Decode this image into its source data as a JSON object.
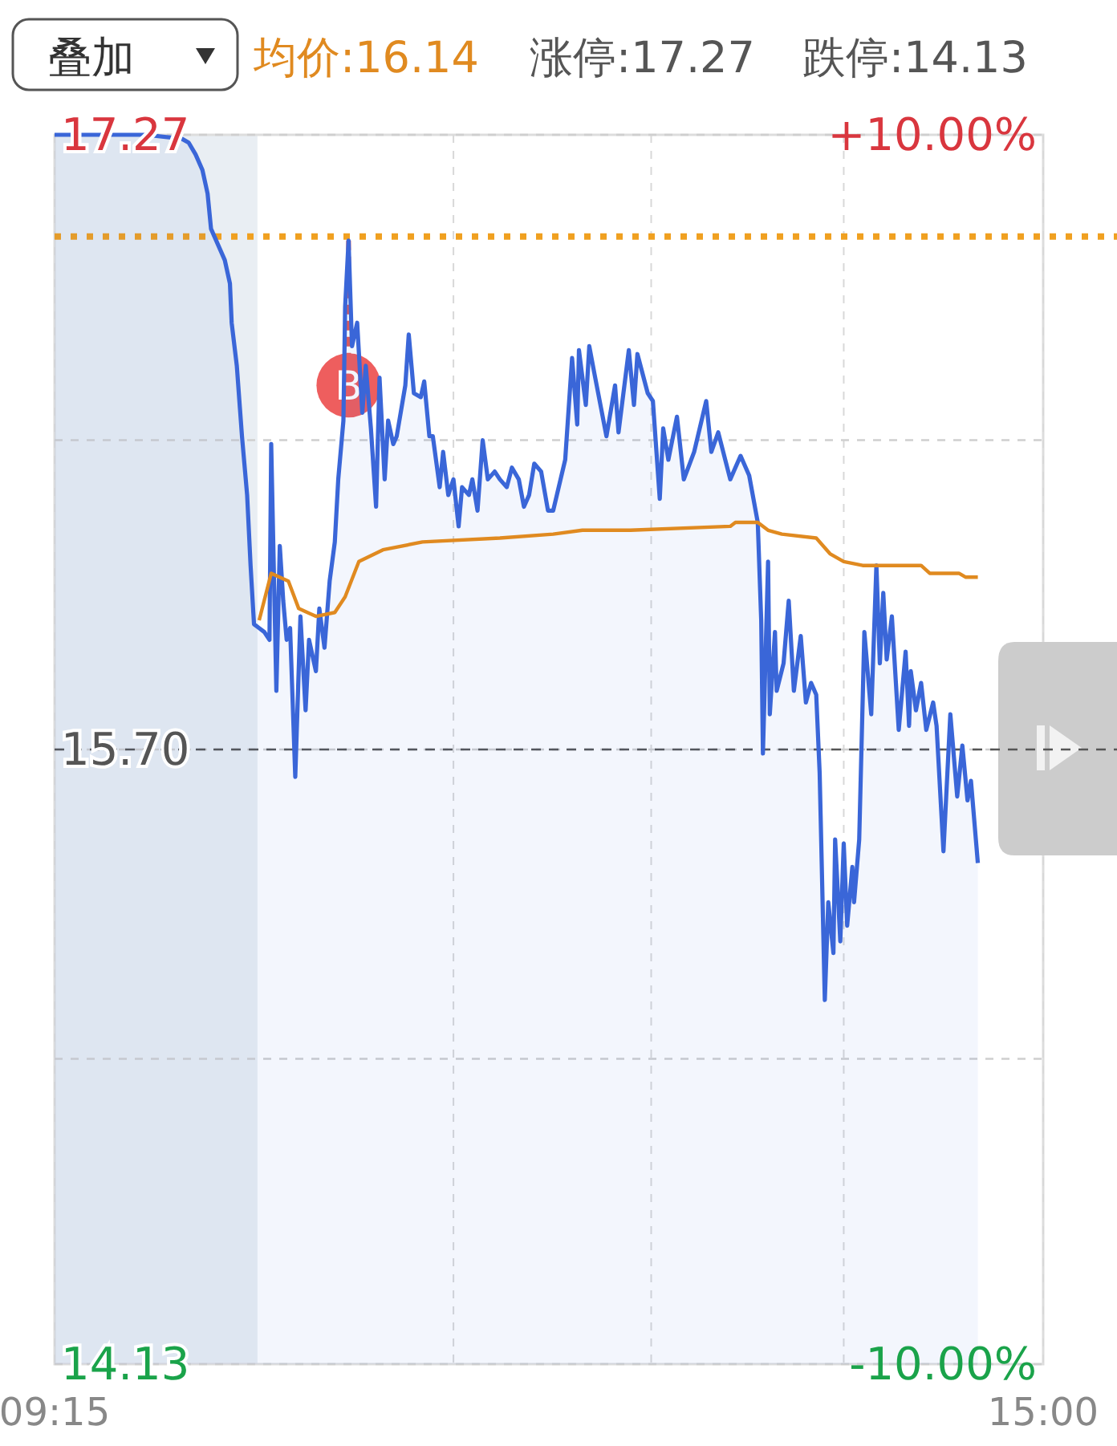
{
  "chart_data": {
    "type": "area",
    "xlim": [
      9.25,
      15
    ],
    "xticks": [
      {
        "value": 9.25,
        "label": "09:15"
      },
      {
        "value": 11.57,
        "label": null
      },
      {
        "value": 12.72,
        "label": null
      },
      {
        "value": 13.84,
        "label": null
      },
      {
        "value": 15,
        "label": "15:00"
      }
    ],
    "ylim": [
      14.13,
      17.27
    ],
    "yticks": [
      17.27,
      {
        "value": 16.49,
        "label": null
      },
      {
        "value": 15.7,
        "label": "15.70"
      },
      {
        "value": 14.91,
        "label": null
      },
      14.13
    ],
    "y2lim": [
      -10,
      10
    ],
    "y2ticks": [
      {
        "value": 10,
        "label": "+10.00%"
      },
      {
        "value": -10,
        "label": "-10.00%"
      }
    ],
    "grid": true,
    "marker": "none",
    "line_style": "solid",
    "series": [
      {
        "color": "#3a66d8",
        "x": [
          9.25,
          9.78,
          9.99,
          10.03,
          10.07,
          10.11,
          10.14,
          10.16,
          10.18,
          10.24,
          10.27,
          10.28,
          10.31,
          10.33,
          10.34,
          10.37,
          10.39,
          10.41,
          10.44,
          10.47,
          10.5,
          10.51,
          10.54,
          10.56,
          10.58,
          10.6,
          10.62,
          10.65,
          10.68,
          10.71,
          10.73,
          10.77,
          10.79,
          10.82,
          10.85,
          10.88,
          10.9,
          10.93,
          10.94,
          10.96,
          10.98,
          11.01,
          11.04,
          11.06,
          11.09,
          11.12,
          11.14,
          11.17,
          11.19,
          11.22,
          11.24,
          11.29,
          11.31,
          11.34,
          11.38,
          11.4,
          11.43,
          11.45,
          11.49,
          11.51,
          11.54,
          11.57,
          11.6,
          11.62,
          11.66,
          11.68,
          11.71,
          11.74,
          11.77,
          11.81,
          11.84,
          11.88,
          11.91,
          11.95,
          11.98,
          12.01,
          12.04,
          12.08,
          12.12,
          12.15,
          12.22,
          12.26,
          12.29,
          12.3,
          12.34,
          12.36,
          12.39,
          12.46,
          12.51,
          12.53,
          12.59,
          12.62,
          12.64,
          12.7,
          12.73,
          12.77,
          12.79,
          12.82,
          12.87,
          12.91,
          12.97,
          13.04,
          13.07,
          13.11,
          13.18,
          13.24,
          13.29,
          13.34,
          13.36,
          13.37,
          13.4,
          13.41,
          13.44,
          13.45,
          13.49,
          13.52,
          13.55,
          13.59,
          13.62,
          13.65,
          13.68,
          13.7,
          13.73,
          13.75,
          13.78,
          13.79,
          13.82,
          13.84,
          13.86,
          13.89,
          13.9,
          13.93,
          13.96,
          14.0,
          14.03,
          14.05,
          14.07,
          14.09,
          14.12,
          14.16,
          14.2,
          14.22,
          14.23,
          14.26,
          14.29,
          14.32,
          14.36,
          14.38,
          14.42,
          14.46,
          14.5,
          14.53,
          14.56,
          14.58,
          14.62
        ],
        "values": [
          17.27,
          17.27,
          17.26,
          17.25,
          17.22,
          17.18,
          17.12,
          17.03,
          17.01,
          16.95,
          16.89,
          16.79,
          16.68,
          16.56,
          16.5,
          16.35,
          16.17,
          16.02,
          16.01,
          16.0,
          15.98,
          16.48,
          15.85,
          16.22,
          16.08,
          15.98,
          16.01,
          15.63,
          16.04,
          15.8,
          15.98,
          15.9,
          16.06,
          15.96,
          16.13,
          16.23,
          16.39,
          16.54,
          16.83,
          17.0,
          16.73,
          16.79,
          16.56,
          16.68,
          16.52,
          16.32,
          16.65,
          16.39,
          16.54,
          16.48,
          16.5,
          16.63,
          16.76,
          16.61,
          16.6,
          16.64,
          16.5,
          16.5,
          16.37,
          16.46,
          16.35,
          16.39,
          16.27,
          16.37,
          16.35,
          16.39,
          16.31,
          16.49,
          16.39,
          16.41,
          16.39,
          16.37,
          16.42,
          16.39,
          16.32,
          16.35,
          16.43,
          16.41,
          16.31,
          16.31,
          16.44,
          16.7,
          16.53,
          16.72,
          16.58,
          16.73,
          16.66,
          16.5,
          16.63,
          16.51,
          16.72,
          16.58,
          16.71,
          16.61,
          16.59,
          16.34,
          16.52,
          16.44,
          16.55,
          16.39,
          16.46,
          16.59,
          16.46,
          16.51,
          16.39,
          16.45,
          16.4,
          16.28,
          16.03,
          15.69,
          16.18,
          15.79,
          16.0,
          15.85,
          15.92,
          16.08,
          15.85,
          15.99,
          15.82,
          15.87,
          15.84,
          15.64,
          15.06,
          15.31,
          15.18,
          15.47,
          15.21,
          15.46,
          15.25,
          15.4,
          15.31,
          15.47,
          16.0,
          15.79,
          16.17,
          15.92,
          16.1,
          15.93,
          16.04,
          15.75,
          15.95,
          15.76,
          15.9,
          15.8,
          15.87,
          15.75,
          15.82,
          15.76,
          15.44,
          15.79,
          15.58,
          15.71,
          15.57,
          15.62,
          15.41
        ]
      },
      {
        "type": "line",
        "color": "#e08a20",
        "x": [
          10.44,
          10.51,
          10.61,
          10.67,
          10.77,
          10.88,
          10.94,
          11.02,
          11.16,
          11.39,
          11.84,
          12.15,
          12.32,
          12.6,
          13.18,
          13.21,
          13.34,
          13.4,
          13.48,
          13.68,
          13.76,
          13.84,
          13.95,
          14.01,
          14.29,
          14.34,
          14.51,
          14.55,
          14.62
        ],
        "values": [
          16.03,
          16.15,
          16.13,
          16.06,
          16.04,
          16.05,
          16.09,
          16.18,
          16.21,
          16.23,
          16.24,
          16.25,
          16.26,
          16.26,
          16.27,
          16.28,
          16.28,
          16.26,
          16.25,
          16.24,
          16.2,
          16.18,
          16.17,
          16.17,
          16.17,
          16.15,
          16.15,
          16.14,
          16.14
        ]
      }
    ],
    "ref_lines": [
      {
        "axis": "y",
        "value": 15.7,
        "color": "#555555",
        "line_style": "dashed"
      },
      {
        "axis": "y",
        "value": 17.01,
        "color": "#f0a020",
        "line_style": "dotted"
      }
    ],
    "bands": [
      {
        "axis": "x",
        "from": 9.25,
        "to": 10.43,
        "color": "#e9eef3"
      }
    ],
    "annotations": [
      "叠加",
      "均价:16.14",
      "涨停:17.27",
      "跌停:14.13",
      {
        "text": "B",
        "x": 10.96,
        "y": 16.63
      }
    ]
  }
}
